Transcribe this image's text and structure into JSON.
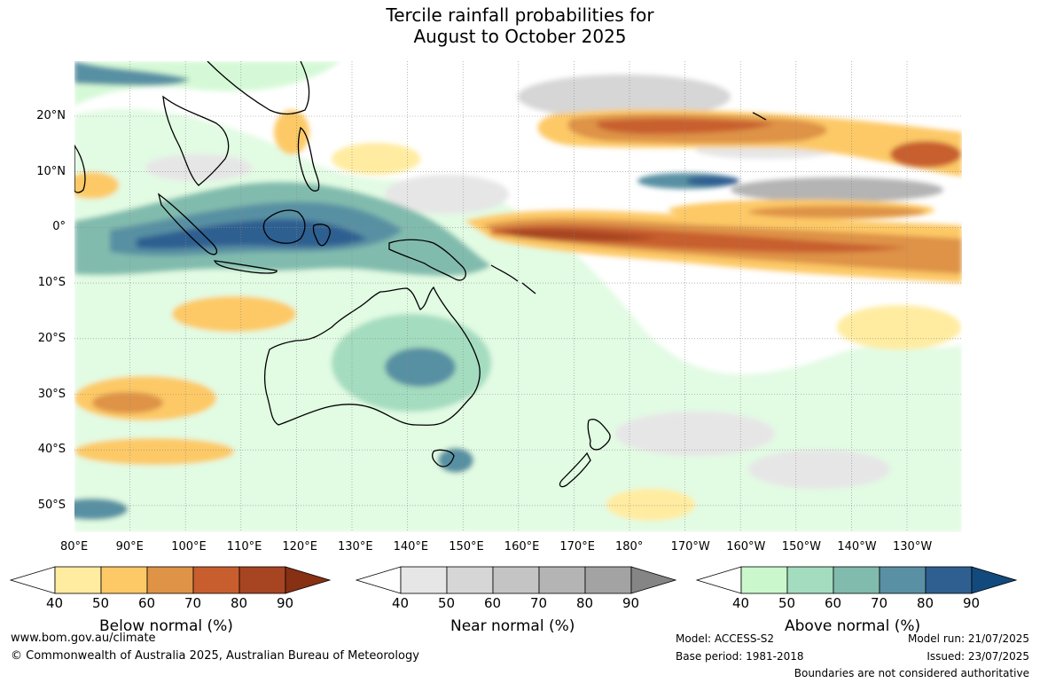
{
  "title": {
    "line1": "Tercile rainfall probabilities for",
    "line2": "August to October 2025"
  },
  "map": {
    "lat_labels": [
      "20°N",
      "10°N",
      "0°",
      "10°S",
      "20°S",
      "30°S",
      "40°S",
      "50°S"
    ],
    "lon_labels": [
      "80°E",
      "90°E",
      "100°E",
      "110°E",
      "120°E",
      "130°E",
      "140°E",
      "150°E",
      "160°E",
      "170°E",
      "180°",
      "170°W",
      "160°W",
      "150°W",
      "140°W",
      "130°W"
    ]
  },
  "colorbars": [
    {
      "title": "Below normal (%)",
      "ticks": [
        "40",
        "50",
        "60",
        "70",
        "80",
        "90"
      ],
      "colors": [
        "#ffffff",
        "#ffeca0",
        "#fdc966",
        "#de9347",
        "#c85e2d",
        "#a74422",
        "#873013"
      ]
    },
    {
      "title": "Near normal (%)",
      "ticks": [
        "40",
        "50",
        "60",
        "70",
        "80",
        "90"
      ],
      "colors": [
        "#ffffff",
        "#e6e6e6",
        "#d6d6d6",
        "#c4c4c4",
        "#b4b4b4",
        "#a3a3a3",
        "#858585"
      ]
    },
    {
      "title": "Above normal (%)",
      "ticks": [
        "40",
        "50",
        "60",
        "70",
        "80",
        "90"
      ],
      "colors": [
        "#ffffff",
        "#caf7cc",
        "#a4dcbf",
        "#81bbad",
        "#5990a3",
        "#2f5f91",
        "#134a7d"
      ]
    }
  ],
  "footer": {
    "website": "www.bom.gov.au/climate",
    "copyright": "© Commonwealth of Australia 2025, Australian Bureau of Meteorology",
    "model": "Model: ACCESS-S2",
    "base_period": "Base period: 1981-2018",
    "model_run": "Model run: 21/07/2025",
    "issued": "Issued: 23/07/2025",
    "disclaimer": "Boundaries are not considered authoritative"
  }
}
